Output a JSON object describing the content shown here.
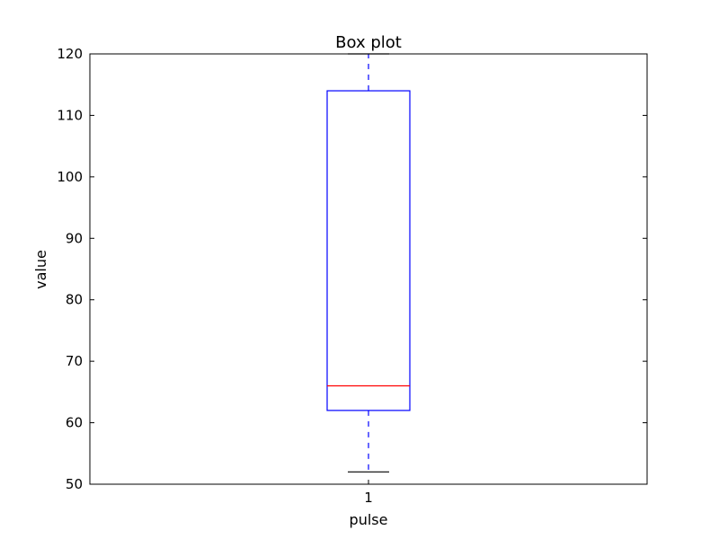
{
  "chart_data": {
    "type": "box",
    "title": "Box plot",
    "xlabel": "pulse",
    "ylabel": "value",
    "ylim": [
      50,
      120
    ],
    "yticks": [
      50,
      60,
      70,
      80,
      90,
      100,
      110,
      120
    ],
    "categories": [
      "1"
    ],
    "boxes": [
      {
        "category": "1",
        "whisker_low": 52,
        "q1": 62,
        "median": 66,
        "q3": 114,
        "whisker_high": 120
      }
    ],
    "grid": false,
    "colors": {
      "box": "#0000ff",
      "whisker": "#0000ff",
      "median": "#ff0000",
      "cap": "#000000",
      "axes": "#000000"
    }
  }
}
